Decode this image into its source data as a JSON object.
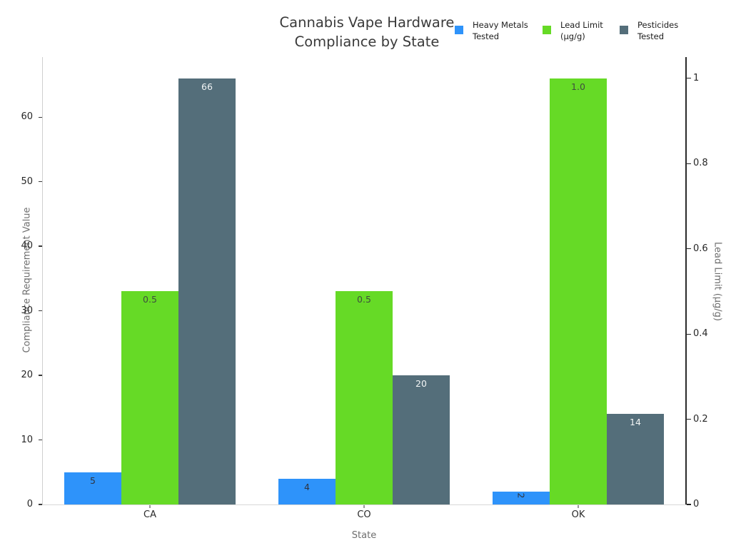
{
  "chart_data": {
    "type": "bar",
    "title": "Cannabis Vape Hardware Compliance by State",
    "title_lines": [
      "Cannabis Vape Hardware",
      "Compliance by State"
    ],
    "categories": [
      "CA",
      "CO",
      "OK"
    ],
    "series": [
      {
        "name": "Heavy Metals Tested",
        "legend_lines": [
          "Heavy Metals",
          "Tested"
        ],
        "color": "#2E93FA",
        "axis": "left",
        "values": [
          5,
          4,
          2
        ],
        "bar_labels": [
          "5",
          "4",
          "2"
        ],
        "bar_label_color": "#2e3440"
      },
      {
        "name": "Lead Limit (µg/g)",
        "legend_lines": [
          "Lead Limit",
          "(µg/g)"
        ],
        "color": "#66DA26",
        "axis": "right",
        "values": [
          0.5,
          0.5,
          1.0
        ],
        "bar_labels": [
          "0.5",
          "0.5",
          "1.0"
        ],
        "bar_label_color": "#3e4e3e"
      },
      {
        "name": "Pesticides Tested",
        "legend_lines": [
          "Pesticides",
          "Tested"
        ],
        "color": "#546E7A",
        "axis": "left",
        "values": [
          66,
          20,
          14
        ],
        "bar_labels": [
          "66",
          "20",
          "14"
        ],
        "bar_label_color": "#f2f5f5"
      }
    ],
    "xlabel": "State",
    "ylabel_left": "Compliance Requirement Value",
    "ylabel_right": "Lead Limit (µg/g)",
    "left_axis": {
      "ticks": [
        "0",
        "10",
        "20",
        "30",
        "40",
        "50",
        "60"
      ],
      "tick_values": [
        0,
        10,
        20,
        30,
        40,
        50,
        60
      ],
      "max": 69.3
    },
    "right_axis": {
      "ticks": [
        "0",
        "0.2",
        "0.4",
        "0.6",
        "0.8",
        "1"
      ],
      "tick_values": [
        0,
        0.2,
        0.4,
        0.6,
        0.8,
        1
      ],
      "max": 1.05
    },
    "legend_position": "top-right",
    "grid": false,
    "background_color": "#ffffff"
  }
}
